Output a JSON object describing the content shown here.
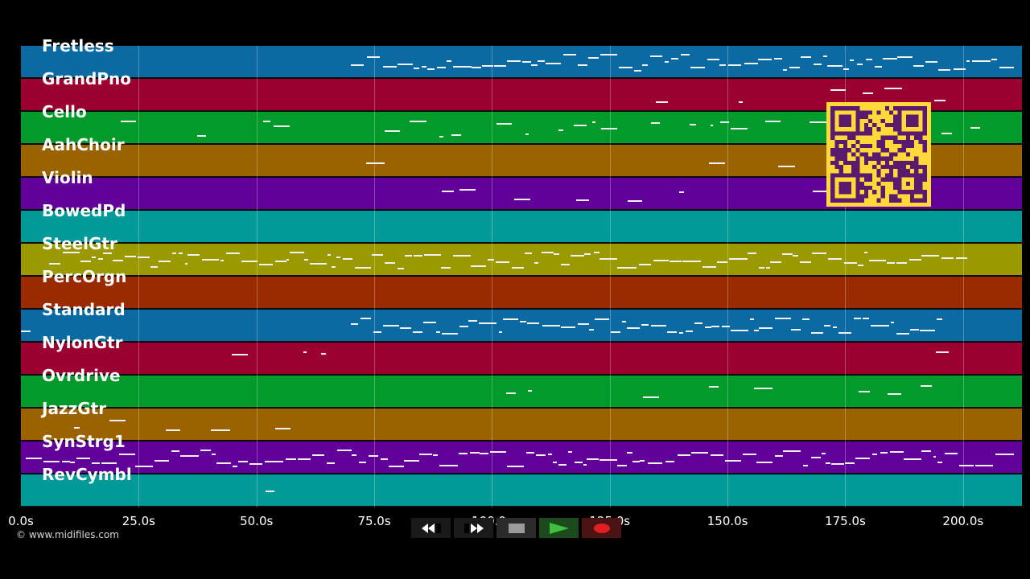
{
  "tracks": [
    {
      "name": "Fretless",
      "color": "#0a6aa1"
    },
    {
      "name": "GrandPno",
      "color": "#9a0030"
    },
    {
      "name": "Cello",
      "color": "#029a2a"
    },
    {
      "name": "AahChoir",
      "color": "#9a6300"
    },
    {
      "name": "Violin",
      "color": "#62009a"
    },
    {
      "name": "BowedPd",
      "color": "#029a98"
    },
    {
      "name": "SteelGtr",
      "color": "#9a9a00"
    },
    {
      "name": "PercOrgn",
      "color": "#9a2a00"
    },
    {
      "name": "Standard",
      "color": "#0a6aa1"
    },
    {
      "name": "NylonGtr",
      "color": "#9a0030"
    },
    {
      "name": "Ovrdrive",
      "color": "#029a2a"
    },
    {
      "name": "JazzGtr",
      "color": "#9a6300"
    },
    {
      "name": "SynStrg1",
      "color": "#62009a"
    },
    {
      "name": "RevCymbl",
      "color": "#029a98"
    }
  ],
  "time_axis": {
    "ticks": [
      "0.0s",
      "25.0s",
      "50.0s",
      "75.0s",
      "100.0s",
      "125.0s",
      "150.0s",
      "175.0s",
      "200.0s"
    ],
    "tick_values": [
      0,
      25,
      50,
      75,
      100,
      125,
      150,
      175,
      200
    ],
    "max_seconds": 212.5
  },
  "copyright": "© www.midifiles.com",
  "qr_code": {
    "icon": "qr-code-icon",
    "color": "#ffd83a",
    "dark": "#5a1a6e"
  },
  "transport": {
    "rewind": {
      "icon": "rewind-icon"
    },
    "fast_forward": {
      "icon": "fast-forward-icon"
    },
    "stop": {
      "icon": "stop-icon"
    },
    "play": {
      "icon": "play-icon",
      "color": "#3fbf3f"
    },
    "record": {
      "icon": "record-icon",
      "color": "#e02020"
    }
  }
}
